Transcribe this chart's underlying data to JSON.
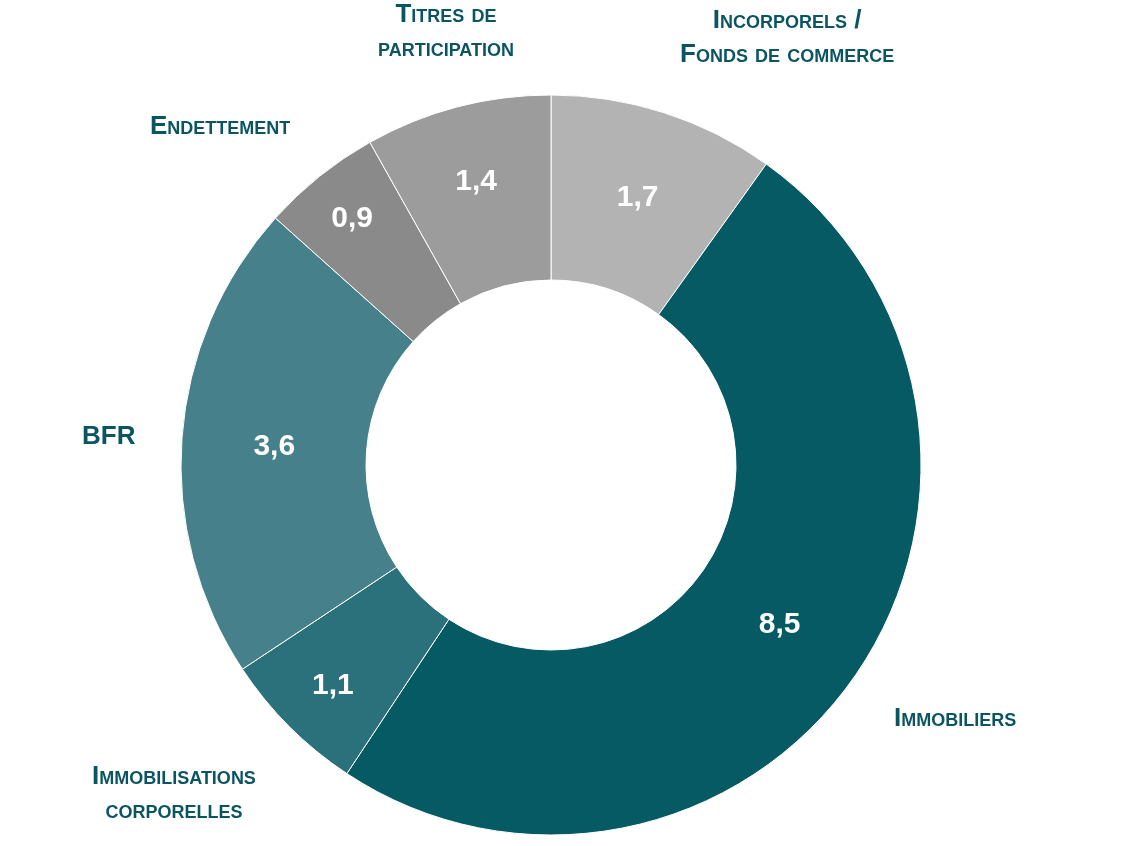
{
  "chart_data": {
    "type": "donut",
    "categories": [
      "Incorporels /\nFonds de commerce",
      "Immobiliers",
      "Immobilisations\ncorporelles",
      "BFR",
      "Endettement",
      "Titres de\nparticipation"
    ],
    "values": [
      1.7,
      8.5,
      1.1,
      3.6,
      0.9,
      1.4
    ],
    "value_labels": [
      "1,7",
      "8,5",
      "1,1",
      "3,6",
      "0,9",
      "1,4"
    ],
    "colors": [
      "#b3b3b3",
      "#065a64",
      "#2a717c",
      "#46818b",
      "#8a8a8a",
      "#9c9c9c"
    ],
    "legend": false
  }
}
